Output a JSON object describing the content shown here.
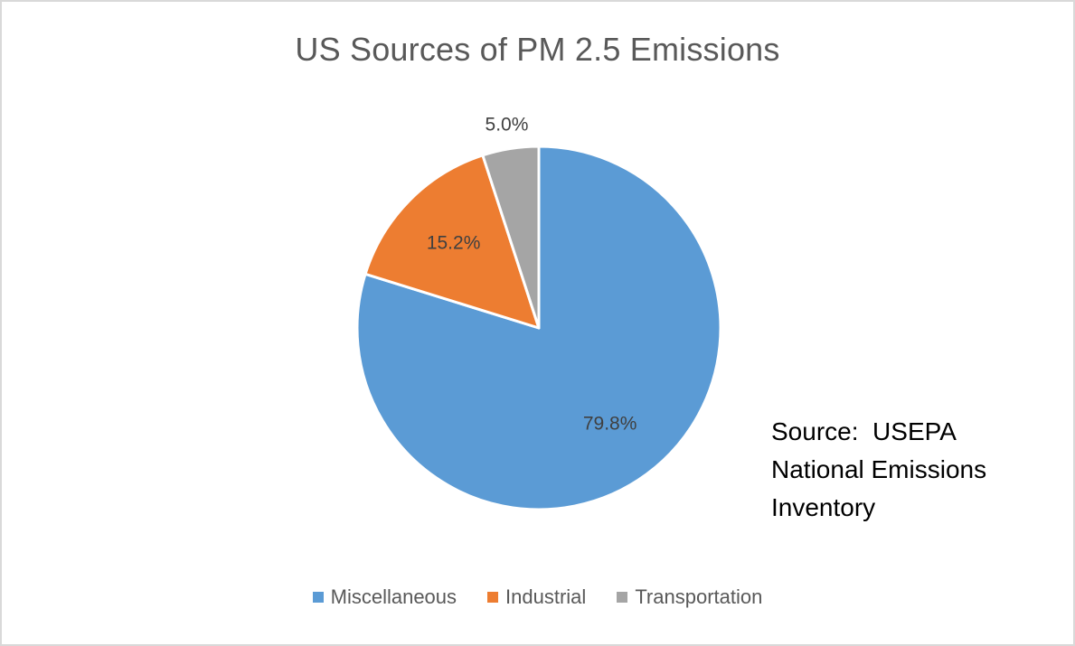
{
  "chart_data": {
    "type": "pie",
    "title": "US Sources of PM 2.5 Emissions",
    "categories": [
      "Miscellaneous",
      "Industrial",
      "Transportation"
    ],
    "values": [
      79.8,
      15.2,
      5.0
    ],
    "data_labels": [
      "79.8%",
      "15.2%",
      "5.0%"
    ],
    "colors": [
      "#5B9BD5",
      "#ED7D31",
      "#A5A5A5"
    ],
    "start_angle_deg": 0,
    "direction": "clockwise",
    "legend": "bottom",
    "legend_entries": [
      "Miscellaneous",
      "Industrial",
      "Transportation"
    ]
  },
  "annotation": {
    "lines": [
      "Source:  USEPA",
      "National Emissions",
      "Inventory"
    ]
  }
}
